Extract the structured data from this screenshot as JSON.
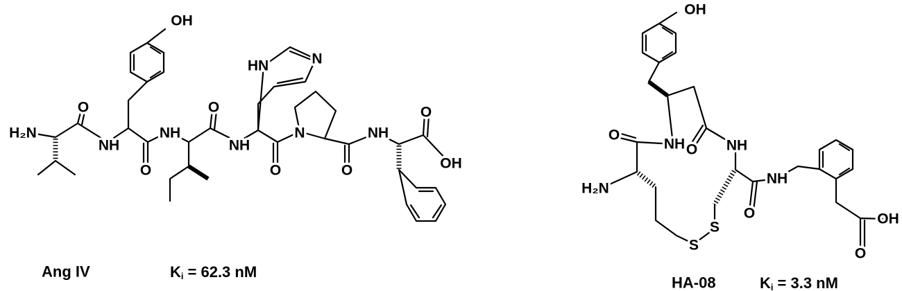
{
  "molecules": [
    {
      "atoms": [
        "OH",
        "HN",
        "N",
        "H₂N",
        "O",
        "NH",
        "O",
        "NH",
        "O",
        "NH",
        "O",
        "N",
        "O",
        "NH",
        "O",
        "OH"
      ],
      "caption": {
        "name": "Ang IV",
        "k_symbol": "K",
        "k_subscript": "i",
        "k_value": "= 62.3 nM"
      }
    },
    {
      "atoms": [
        "OH",
        "NH",
        "O",
        "O",
        "NH",
        "H₂N",
        "NH",
        "O",
        "S",
        "S",
        "OH",
        "O"
      ],
      "caption": {
        "name": "HA-08",
        "k_symbol": "K",
        "k_subscript": "i",
        "k_value": "= 3.3 nM"
      }
    }
  ]
}
